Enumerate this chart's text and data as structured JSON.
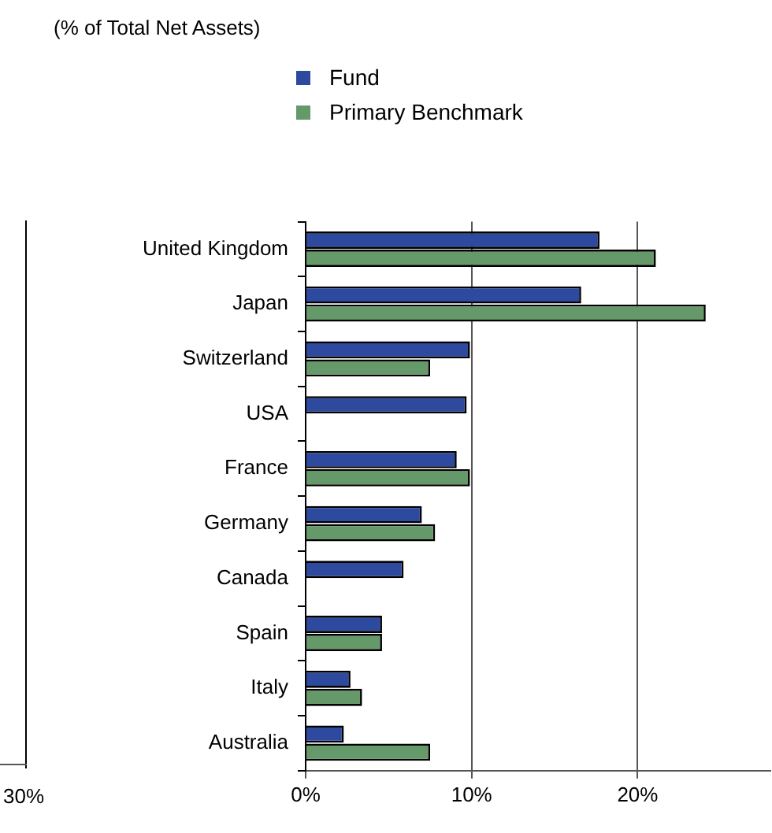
{
  "chart_data": {
    "type": "bar",
    "orientation": "horizontal",
    "title": "(% of Total Net Assets)",
    "categories": [
      "United Kingdom",
      "Japan",
      "Switzerland",
      "USA",
      "France",
      "Germany",
      "Canada",
      "Spain",
      "Italy",
      "Australia"
    ],
    "series": [
      {
        "name": "Fund",
        "color": "#2e4a9e",
        "values": [
          17.7,
          16.6,
          9.9,
          9.7,
          9.1,
          7.0,
          5.9,
          4.6,
          2.7,
          2.3
        ]
      },
      {
        "name": "Primary Benchmark",
        "color": "#66996a",
        "values": [
          21.1,
          24.1,
          7.5,
          null,
          9.9,
          7.8,
          null,
          4.6,
          3.4,
          7.5
        ]
      }
    ],
    "xlim": [
      0,
      28
    ],
    "xticks": [
      {
        "value": 0,
        "label": "0%"
      },
      {
        "value": 10,
        "label": "10%"
      },
      {
        "value": 20,
        "label": "20%"
      }
    ],
    "grid": "x",
    "legend": "top",
    "annotations": [
      "30%"
    ]
  }
}
